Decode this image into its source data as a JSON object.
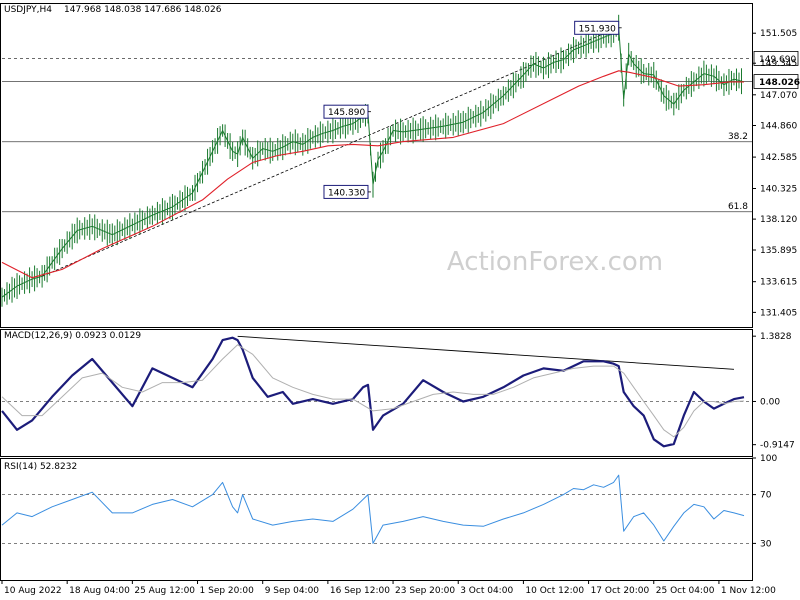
{
  "header": {
    "symbol": "USDJPY,H4",
    "ohlc": "147.968 148.038 147.686 148.026"
  },
  "watermark": "ActionForex.com",
  "colors": {
    "price": "#1a7a2e",
    "ma": "#e0212a",
    "macd": "#1c1c7a",
    "signal": "#b0b0b0",
    "rsi": "#3a8ee0",
    "label_border": "#1c1c7a"
  },
  "chart_data": [
    {
      "type": "line",
      "panel": "price",
      "y_axis_labels": [
        "151.505",
        "149.345",
        "147.070",
        "144.860",
        "142.585",
        "140.325",
        "138.120",
        "135.895",
        "133.615",
        "131.405"
      ],
      "ylim": [
        131.0,
        152.6
      ],
      "price_tag": "148.026",
      "levels": [
        {
          "value": 149.69,
          "style": "dashed",
          "tag": "149.690"
        },
        {
          "value": 148.026,
          "style": "solid",
          "tag": "148.026"
        },
        {
          "value": 143.69,
          "style": "solid",
          "fib": "38.2"
        },
        {
          "value": 138.65,
          "style": "solid",
          "fib": "61.8"
        }
      ],
      "annotations": [
        {
          "text": "151.930",
          "x": 123,
          "y": 151.93
        },
        {
          "text": "145.890",
          "x": 73,
          "y": 145.89
        },
        {
          "text": "140.330",
          "x": 73,
          "y": 140.33
        }
      ],
      "trendline": [
        {
          "x": 8,
          "y": 134.0
        },
        {
          "x": 123,
          "y": 151.93
        }
      ],
      "series": [
        {
          "role": "price",
          "x": [
            0,
            3,
            6,
            8,
            10,
            12,
            15,
            18,
            22,
            26,
            30,
            34,
            38,
            42,
            44,
            46,
            47,
            48,
            50,
            52,
            54,
            56,
            58,
            60,
            62,
            64,
            66,
            68,
            70,
            72,
            73,
            74,
            75,
            76,
            78,
            80,
            84,
            88,
            92,
            96,
            100,
            104,
            106,
            108,
            110,
            112,
            114,
            116,
            118,
            120,
            122,
            123,
            124,
            125,
            126,
            128,
            130,
            132,
            134,
            136,
            138,
            140,
            142,
            144,
            146,
            148
          ],
          "values": [
            132.5,
            133.3,
            133.8,
            134.0,
            135.0,
            136.0,
            137.3,
            137.6,
            137.0,
            137.7,
            138.4,
            139.0,
            140.0,
            143.0,
            144.5,
            143.0,
            142.8,
            144.0,
            142.5,
            143.2,
            143.0,
            143.3,
            143.7,
            143.5,
            144.0,
            144.3,
            144.5,
            144.8,
            145.0,
            145.5,
            145.7,
            140.6,
            142.4,
            143.0,
            144.5,
            144.4,
            144.6,
            144.8,
            145.1,
            145.8,
            147.0,
            148.5,
            149.3,
            149.0,
            149.4,
            149.6,
            150.3,
            150.6,
            150.9,
            151.2,
            151.5,
            151.9,
            146.8,
            150.0,
            149.3,
            148.6,
            148.5,
            147.0,
            146.4,
            147.4,
            148.0,
            148.6,
            148.4,
            147.8,
            148.2,
            148.0
          ]
        },
        {
          "role": "ma",
          "x": [
            0,
            6,
            12,
            20,
            30,
            40,
            45,
            50,
            55,
            60,
            65,
            70,
            75,
            80,
            90,
            100,
            110,
            115,
            120,
            123,
            125,
            130,
            135,
            140,
            145,
            148
          ],
          "values": [
            135.0,
            133.9,
            134.5,
            136.0,
            137.6,
            139.5,
            141.0,
            142.2,
            142.7,
            143.0,
            143.4,
            143.5,
            143.4,
            143.7,
            144.0,
            145.0,
            146.8,
            147.7,
            148.4,
            148.8,
            148.7,
            148.3,
            147.7,
            147.8,
            148.0,
            148.0
          ]
        }
      ]
    },
    {
      "type": "line",
      "panel": "macd",
      "header": "MACD(12,26,9) 0.0923 0.0129",
      "y_axis_labels": [
        "1.3828",
        "0.00",
        "-0.9147"
      ],
      "ylim": [
        -1.07,
        1.45
      ],
      "levels": [
        {
          "value": 0.0,
          "style": "dashed"
        }
      ],
      "trendline": [
        {
          "x": 47,
          "y": 1.38
        },
        {
          "x": 146,
          "y": 0.68
        }
      ],
      "series": [
        {
          "role": "macd",
          "x": [
            0,
            3,
            6,
            10,
            14,
            18,
            22,
            26,
            30,
            34,
            38,
            42,
            44,
            46,
            47,
            48,
            50,
            53,
            56,
            58,
            62,
            66,
            70,
            72,
            73,
            74,
            76,
            80,
            84,
            88,
            92,
            96,
            100,
            104,
            108,
            112,
            116,
            120,
            122,
            123,
            124,
            126,
            128,
            130,
            132,
            134,
            136,
            138,
            140,
            142,
            144,
            146,
            148
          ],
          "values": [
            -0.2,
            -0.6,
            -0.4,
            0.1,
            0.55,
            0.9,
            0.4,
            -0.1,
            0.7,
            0.5,
            0.3,
            0.9,
            1.3,
            1.35,
            1.3,
            1.1,
            0.5,
            0.1,
            0.2,
            -0.05,
            0.05,
            -0.05,
            0.05,
            0.3,
            0.35,
            -0.6,
            -0.3,
            -0.05,
            0.45,
            0.2,
            0.0,
            0.1,
            0.3,
            0.55,
            0.7,
            0.65,
            0.85,
            0.85,
            0.8,
            0.75,
            0.2,
            -0.1,
            -0.3,
            -0.8,
            -0.95,
            -0.9,
            -0.3,
            0.2,
            0.0,
            -0.15,
            -0.05,
            0.05,
            0.09
          ]
        },
        {
          "role": "signal",
          "x": [
            0,
            4,
            8,
            12,
            16,
            20,
            24,
            28,
            32,
            36,
            40,
            44,
            47,
            50,
            54,
            58,
            62,
            66,
            70,
            74,
            78,
            82,
            86,
            90,
            94,
            98,
            102,
            106,
            110,
            114,
            118,
            122,
            124,
            126,
            128,
            130,
            132,
            134,
            136,
            138,
            140,
            142,
            144,
            146,
            148
          ],
          "values": [
            0.1,
            -0.3,
            -0.3,
            0.1,
            0.5,
            0.6,
            0.3,
            0.2,
            0.4,
            0.4,
            0.45,
            0.9,
            1.2,
            1.0,
            0.5,
            0.3,
            0.15,
            0.05,
            0.05,
            -0.2,
            -0.15,
            0.0,
            0.15,
            0.2,
            0.15,
            0.15,
            0.3,
            0.5,
            0.6,
            0.7,
            0.75,
            0.75,
            0.6,
            0.3,
            0.0,
            -0.3,
            -0.6,
            -0.75,
            -0.55,
            -0.2,
            0.0,
            0.0,
            -0.05,
            0.0,
            0.01
          ]
        }
      ]
    },
    {
      "type": "line",
      "panel": "rsi",
      "header": "RSI(14) 52.8232",
      "y_axis_labels": [
        "100",
        "70",
        "30"
      ],
      "ylim": [
        0,
        100
      ],
      "levels": [
        {
          "value": 70,
          "style": "dashed"
        },
        {
          "value": 30,
          "style": "dashed"
        }
      ],
      "series": [
        {
          "role": "rsi",
          "x": [
            0,
            3,
            6,
            10,
            14,
            18,
            22,
            26,
            30,
            34,
            38,
            42,
            44,
            46,
            47,
            48,
            50,
            54,
            58,
            62,
            66,
            70,
            73,
            74,
            76,
            80,
            84,
            88,
            92,
            96,
            100,
            104,
            108,
            112,
            114,
            116,
            118,
            120,
            122,
            123,
            124,
            126,
            128,
            130,
            132,
            134,
            136,
            138,
            140,
            142,
            144,
            146,
            148
          ],
          "values": [
            45,
            55,
            52,
            60,
            66,
            72,
            55,
            55,
            62,
            66,
            60,
            70,
            80,
            60,
            55,
            70,
            50,
            45,
            48,
            50,
            48,
            58,
            70,
            30,
            45,
            48,
            52,
            48,
            45,
            44,
            50,
            55,
            62,
            70,
            75,
            74,
            78,
            76,
            80,
            86,
            40,
            52,
            55,
            45,
            32,
            44,
            55,
            62,
            60,
            50,
            57,
            55,
            52.8
          ]
        }
      ]
    }
  ],
  "x_axis": {
    "labels": [
      "10 Aug 2022",
      "18 Aug 04:00",
      "25 Aug 12:00",
      "1 Sep 20:00",
      "9 Sep 04:00",
      "16 Sep 12:00",
      "23 Sep 20:00",
      "3 Oct 04:00",
      "10 Oct 12:00",
      "17 Oct 20:00",
      "25 Oct 04:00",
      "1 Nov 12:00"
    ],
    "positions": [
      0,
      13,
      26,
      39,
      52,
      65,
      78,
      91,
      104,
      117,
      130,
      143
    ]
  }
}
